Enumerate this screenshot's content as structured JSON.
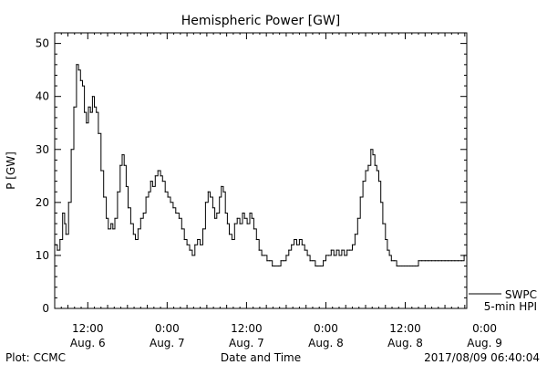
{
  "chart_data": {
    "type": "line",
    "title": "Hemispheric Power [GW]",
    "ylabel": "P [GW]",
    "xlabel": "Date and Time",
    "ylim": [
      0,
      52
    ],
    "yticks": [
      0,
      10,
      20,
      30,
      40,
      50
    ],
    "xlim": [
      7.0,
      69.3
    ],
    "x_unit": "hours since 2017-08-06 00:00",
    "xticks": [
      {
        "x": 12,
        "time": "12:00",
        "date": "Aug. 6"
      },
      {
        "x": 24,
        "time": "0:00",
        "date": "Aug. 7"
      },
      {
        "x": 36,
        "time": "12:00",
        "date": "Aug. 7"
      },
      {
        "x": 48,
        "time": "0:00",
        "date": "Aug. 8"
      },
      {
        "x": 60,
        "time": "12:00",
        "date": "Aug. 8"
      },
      {
        "x": 72,
        "time": "0:00",
        "date": "Aug. 9"
      }
    ],
    "legend": {
      "source": "SWPC",
      "series": "5-min HPI"
    },
    "series": [
      {
        "name": "5-min HPI",
        "points": [
          [
            7.0,
            12
          ],
          [
            7.4,
            11
          ],
          [
            7.8,
            13
          ],
          [
            8.2,
            18
          ],
          [
            8.5,
            16
          ],
          [
            8.7,
            14
          ],
          [
            9.1,
            20
          ],
          [
            9.5,
            30
          ],
          [
            9.9,
            38
          ],
          [
            10.3,
            46
          ],
          [
            10.6,
            45
          ],
          [
            10.9,
            43
          ],
          [
            11.2,
            42
          ],
          [
            11.5,
            37
          ],
          [
            11.8,
            35
          ],
          [
            12.1,
            38
          ],
          [
            12.4,
            37
          ],
          [
            12.7,
            40
          ],
          [
            13.0,
            38
          ],
          [
            13.3,
            37
          ],
          [
            13.6,
            33
          ],
          [
            14.0,
            26
          ],
          [
            14.4,
            21
          ],
          [
            14.8,
            17
          ],
          [
            15.1,
            15
          ],
          [
            15.5,
            16
          ],
          [
            15.8,
            15
          ],
          [
            16.1,
            17
          ],
          [
            16.5,
            22
          ],
          [
            16.9,
            27
          ],
          [
            17.2,
            29
          ],
          [
            17.5,
            27
          ],
          [
            17.8,
            23
          ],
          [
            18.1,
            19
          ],
          [
            18.5,
            16
          ],
          [
            18.9,
            14
          ],
          [
            19.2,
            13
          ],
          [
            19.6,
            15
          ],
          [
            20.0,
            17
          ],
          [
            20.4,
            18
          ],
          [
            20.8,
            21
          ],
          [
            21.2,
            22
          ],
          [
            21.5,
            24
          ],
          [
            21.8,
            23
          ],
          [
            22.2,
            25
          ],
          [
            22.6,
            26
          ],
          [
            23.0,
            25
          ],
          [
            23.3,
            24
          ],
          [
            23.7,
            22
          ],
          [
            24.1,
            21
          ],
          [
            24.5,
            20
          ],
          [
            24.9,
            19
          ],
          [
            25.3,
            18
          ],
          [
            25.8,
            17
          ],
          [
            26.2,
            15
          ],
          [
            26.6,
            13
          ],
          [
            27.0,
            12
          ],
          [
            27.4,
            11
          ],
          [
            27.8,
            10
          ],
          [
            28.2,
            12
          ],
          [
            28.6,
            13
          ],
          [
            29.0,
            12
          ],
          [
            29.4,
            15
          ],
          [
            29.8,
            20
          ],
          [
            30.2,
            22
          ],
          [
            30.5,
            21
          ],
          [
            30.9,
            19
          ],
          [
            31.2,
            17
          ],
          [
            31.5,
            18
          ],
          [
            31.9,
            21
          ],
          [
            32.2,
            23
          ],
          [
            32.5,
            22
          ],
          [
            32.8,
            18
          ],
          [
            33.1,
            16
          ],
          [
            33.4,
            14
          ],
          [
            33.8,
            13
          ],
          [
            34.2,
            16
          ],
          [
            34.6,
            17
          ],
          [
            35.0,
            16
          ],
          [
            35.4,
            18
          ],
          [
            35.7,
            17
          ],
          [
            36.1,
            16
          ],
          [
            36.5,
            18
          ],
          [
            36.8,
            17
          ],
          [
            37.1,
            15
          ],
          [
            37.5,
            13
          ],
          [
            37.9,
            11
          ],
          [
            38.3,
            10
          ],
          [
            38.7,
            10
          ],
          [
            39.1,
            9
          ],
          [
            39.5,
            9
          ],
          [
            39.9,
            8
          ],
          [
            40.3,
            8
          ],
          [
            40.8,
            8
          ],
          [
            41.2,
            9
          ],
          [
            41.6,
            9
          ],
          [
            42.0,
            10
          ],
          [
            42.4,
            11
          ],
          [
            42.8,
            12
          ],
          [
            43.2,
            13
          ],
          [
            43.6,
            12
          ],
          [
            44.0,
            13
          ],
          [
            44.4,
            12
          ],
          [
            44.8,
            11
          ],
          [
            45.2,
            10
          ],
          [
            45.6,
            9
          ],
          [
            46.0,
            9
          ],
          [
            46.4,
            8
          ],
          [
            46.8,
            8
          ],
          [
            47.2,
            8
          ],
          [
            47.6,
            9
          ],
          [
            48.0,
            10
          ],
          [
            48.4,
            10
          ],
          [
            48.8,
            11
          ],
          [
            49.2,
            10
          ],
          [
            49.6,
            11
          ],
          [
            50.0,
            10
          ],
          [
            50.4,
            11
          ],
          [
            50.8,
            10
          ],
          [
            51.2,
            11
          ],
          [
            51.6,
            11
          ],
          [
            52.0,
            12
          ],
          [
            52.4,
            14
          ],
          [
            52.8,
            17
          ],
          [
            53.2,
            21
          ],
          [
            53.6,
            24
          ],
          [
            54.0,
            26
          ],
          [
            54.4,
            27
          ],
          [
            54.8,
            30
          ],
          [
            55.1,
            29
          ],
          [
            55.4,
            27
          ],
          [
            55.7,
            26
          ],
          [
            56.0,
            24
          ],
          [
            56.3,
            20
          ],
          [
            56.6,
            16
          ],
          [
            57.0,
            13
          ],
          [
            57.3,
            11
          ],
          [
            57.6,
            10
          ],
          [
            57.9,
            9
          ],
          [
            58.3,
            9
          ],
          [
            58.7,
            8
          ],
          [
            59.1,
            8
          ],
          [
            59.5,
            8
          ],
          [
            59.9,
            8
          ],
          [
            60.3,
            8
          ],
          [
            60.7,
            8
          ],
          [
            61.1,
            8
          ],
          [
            61.5,
            8
          ],
          [
            62.0,
            9
          ],
          [
            62.5,
            9
          ],
          [
            63.0,
            9
          ],
          [
            63.5,
            9
          ],
          [
            64.0,
            9
          ],
          [
            64.5,
            9
          ],
          [
            65.0,
            9
          ],
          [
            65.5,
            9
          ],
          [
            66.0,
            9
          ],
          [
            66.5,
            9
          ],
          [
            67.0,
            9
          ],
          [
            67.5,
            9
          ],
          [
            68.0,
            9
          ],
          [
            68.5,
            9
          ],
          [
            68.9,
            10
          ],
          [
            69.3,
            12
          ]
        ]
      }
    ]
  },
  "footer": {
    "left": "Plot: CCMC",
    "right": "2017/08/09 06:40:04"
  }
}
